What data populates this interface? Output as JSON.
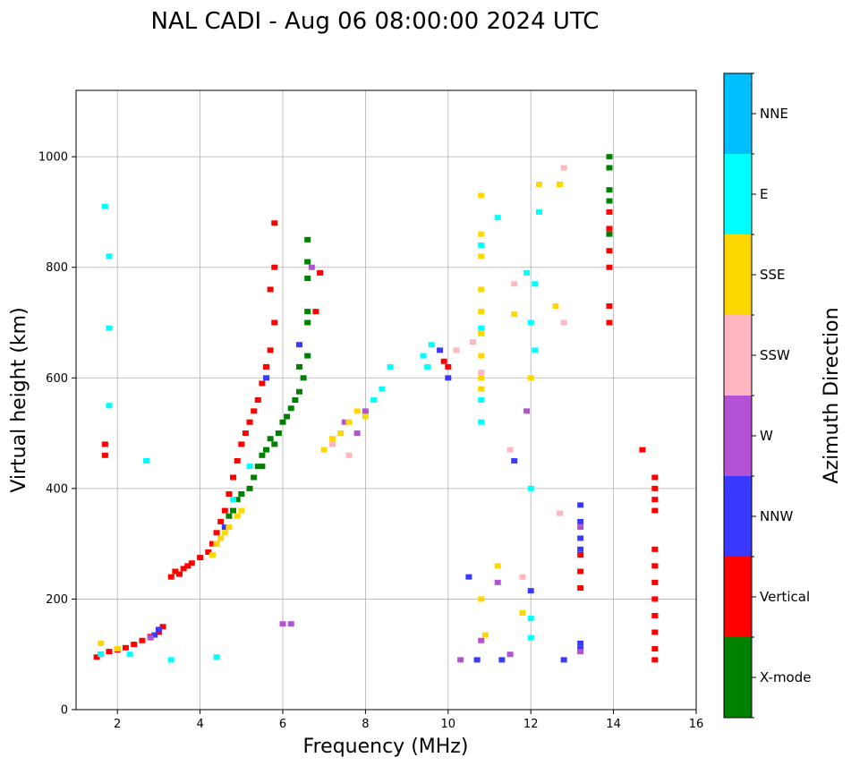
{
  "chart_data": {
    "type": "scatter",
    "title": "NAL CADI - Aug 06 08:00:00 2024 UTC",
    "xlabel": "Frequency (MHz)",
    "ylabel": "Virtual height (km)",
    "xlim": [
      1,
      16
    ],
    "ylim": [
      0,
      1120
    ],
    "xticks": [
      2,
      4,
      6,
      8,
      10,
      12,
      14,
      16
    ],
    "yticks": [
      0,
      200,
      400,
      600,
      800,
      1000
    ],
    "grid": true,
    "colorbar": {
      "label": "Azimuth Direction",
      "categories": [
        "X-mode",
        "Vertical",
        "NNW",
        "W",
        "SSW",
        "SSE",
        "E",
        "NNE"
      ],
      "colors": [
        "#008000",
        "#ff0000",
        "#3939ff",
        "#b452d6",
        "#ffb6c1",
        "#ffd700",
        "#00ffff",
        "#00bfff"
      ]
    },
    "series": [
      {
        "name": "X-mode",
        "points": [
          [
            5.3,
            420
          ],
          [
            5.4,
            440
          ],
          [
            5.5,
            460
          ],
          [
            5.6,
            470
          ],
          [
            5.8,
            480
          ],
          [
            5.9,
            500
          ],
          [
            6.0,
            520
          ],
          [
            6.1,
            530
          ],
          [
            6.2,
            545
          ],
          [
            6.3,
            560
          ],
          [
            6.4,
            575
          ],
          [
            6.5,
            600
          ],
          [
            6.6,
            640
          ],
          [
            6.6,
            700
          ],
          [
            6.6,
            720
          ],
          [
            6.6,
            780
          ],
          [
            6.6,
            810
          ],
          [
            6.6,
            850
          ],
          [
            5.5,
            440
          ],
          [
            5.2,
            400
          ],
          [
            5.0,
            390
          ],
          [
            4.9,
            380
          ],
          [
            4.8,
            360
          ],
          [
            4.7,
            350
          ],
          [
            5.7,
            490
          ],
          [
            6.4,
            620
          ],
          [
            13.9,
            1000
          ],
          [
            13.9,
            980
          ],
          [
            13.9,
            940
          ],
          [
            13.9,
            920
          ],
          [
            13.9,
            860
          ]
        ]
      },
      {
        "name": "Vertical",
        "points": [
          [
            1.5,
            95
          ],
          [
            1.6,
            100
          ],
          [
            1.8,
            105
          ],
          [
            2.0,
            108
          ],
          [
            2.2,
            112
          ],
          [
            2.4,
            118
          ],
          [
            2.6,
            125
          ],
          [
            2.8,
            132
          ],
          [
            3.0,
            140
          ],
          [
            3.1,
            150
          ],
          [
            3.3,
            240
          ],
          [
            3.4,
            250
          ],
          [
            3.5,
            245
          ],
          [
            3.6,
            255
          ],
          [
            3.7,
            260
          ],
          [
            3.8,
            265
          ],
          [
            4.0,
            275
          ],
          [
            4.2,
            285
          ],
          [
            4.3,
            300
          ],
          [
            4.4,
            320
          ],
          [
            4.5,
            340
          ],
          [
            4.6,
            360
          ],
          [
            4.7,
            390
          ],
          [
            4.8,
            420
          ],
          [
            4.9,
            450
          ],
          [
            5.0,
            480
          ],
          [
            5.1,
            500
          ],
          [
            5.2,
            520
          ],
          [
            5.3,
            540
          ],
          [
            5.4,
            560
          ],
          [
            5.5,
            590
          ],
          [
            5.6,
            620
          ],
          [
            5.7,
            650
          ],
          [
            5.8,
            700
          ],
          [
            5.7,
            760
          ],
          [
            5.8,
            800
          ],
          [
            5.8,
            880
          ],
          [
            6.8,
            720
          ],
          [
            6.9,
            790
          ],
          [
            9.9,
            630
          ],
          [
            10.0,
            620
          ],
          [
            13.9,
            900
          ],
          [
            13.9,
            870
          ],
          [
            13.9,
            830
          ],
          [
            13.9,
            800
          ],
          [
            13.9,
            730
          ],
          [
            13.9,
            700
          ],
          [
            14.7,
            470
          ],
          [
            15.0,
            420
          ],
          [
            15.0,
            400
          ],
          [
            15.0,
            380
          ],
          [
            15.0,
            360
          ],
          [
            15.0,
            290
          ],
          [
            15.0,
            260
          ],
          [
            15.0,
            230
          ],
          [
            15.0,
            200
          ],
          [
            15.0,
            170
          ],
          [
            15.0,
            140
          ],
          [
            15.0,
            110
          ],
          [
            15.0,
            90
          ],
          [
            13.2,
            280
          ],
          [
            13.2,
            250
          ],
          [
            13.2,
            220
          ],
          [
            1.7,
            480
          ],
          [
            1.7,
            460
          ]
        ]
      },
      {
        "name": "NNW",
        "points": [
          [
            2.9,
            135
          ],
          [
            3.0,
            145
          ],
          [
            4.4,
            300
          ],
          [
            4.6,
            330
          ],
          [
            5.6,
            600
          ],
          [
            6.4,
            660
          ],
          [
            9.8,
            650
          ],
          [
            10.0,
            600
          ],
          [
            10.5,
            240
          ],
          [
            10.7,
            90
          ],
          [
            11.3,
            90
          ],
          [
            11.6,
            450
          ],
          [
            12.0,
            215
          ],
          [
            12.8,
            90
          ],
          [
            13.2,
            370
          ],
          [
            13.2,
            340
          ],
          [
            13.2,
            310
          ],
          [
            13.2,
            290
          ],
          [
            13.2,
            120
          ],
          [
            13.2,
            110
          ]
        ]
      },
      {
        "name": "W",
        "points": [
          [
            2.8,
            130
          ],
          [
            6.0,
            155
          ],
          [
            6.2,
            155
          ],
          [
            6.7,
            800
          ],
          [
            7.5,
            520
          ],
          [
            7.8,
            500
          ],
          [
            8.0,
            540
          ],
          [
            10.3,
            90
          ],
          [
            10.8,
            125
          ],
          [
            11.2,
            230
          ],
          [
            11.5,
            100
          ],
          [
            11.9,
            540
          ],
          [
            13.2,
            330
          ],
          [
            13.2,
            105
          ]
        ]
      },
      {
        "name": "SSW",
        "points": [
          [
            7.2,
            480
          ],
          [
            7.6,
            460
          ],
          [
            10.2,
            650
          ],
          [
            11.5,
            470
          ],
          [
            12.7,
            355
          ],
          [
            12.8,
            700
          ],
          [
            12.8,
            980
          ],
          [
            11.8,
            240
          ],
          [
            11.6,
            770
          ],
          [
            10.8,
            610
          ],
          [
            10.6,
            665
          ]
        ]
      },
      {
        "name": "SSE",
        "points": [
          [
            1.6,
            120
          ],
          [
            2.0,
            110
          ],
          [
            4.3,
            280
          ],
          [
            4.4,
            300
          ],
          [
            4.5,
            310
          ],
          [
            4.6,
            320
          ],
          [
            4.7,
            330
          ],
          [
            4.9,
            350
          ],
          [
            5.0,
            360
          ],
          [
            7.0,
            470
          ],
          [
            7.2,
            490
          ],
          [
            7.4,
            500
          ],
          [
            7.6,
            520
          ],
          [
            7.8,
            540
          ],
          [
            8.0,
            530
          ],
          [
            10.8,
            930
          ],
          [
            10.8,
            860
          ],
          [
            10.8,
            820
          ],
          [
            10.8,
            760
          ],
          [
            10.8,
            720
          ],
          [
            10.8,
            680
          ],
          [
            10.8,
            640
          ],
          [
            10.8,
            600
          ],
          [
            10.8,
            580
          ],
          [
            11.2,
            260
          ],
          [
            11.8,
            175
          ],
          [
            12.0,
            600
          ],
          [
            12.2,
            950
          ],
          [
            12.6,
            730
          ],
          [
            12.7,
            950
          ],
          [
            11.6,
            715
          ],
          [
            10.9,
            135
          ],
          [
            10.8,
            200
          ]
        ]
      },
      {
        "name": "E",
        "points": [
          [
            1.6,
            100
          ],
          [
            1.7,
            910
          ],
          [
            1.8,
            820
          ],
          [
            1.8,
            690
          ],
          [
            1.8,
            550
          ],
          [
            2.3,
            100
          ],
          [
            2.7,
            450
          ],
          [
            3.3,
            90
          ],
          [
            4.4,
            95
          ],
          [
            4.8,
            380
          ],
          [
            5.2,
            440
          ],
          [
            8.2,
            560
          ],
          [
            8.4,
            580
          ],
          [
            8.6,
            620
          ],
          [
            9.4,
            640
          ],
          [
            9.5,
            620
          ],
          [
            9.6,
            660
          ],
          [
            10.8,
            520
          ],
          [
            10.8,
            560
          ],
          [
            10.8,
            690
          ],
          [
            10.8,
            840
          ],
          [
            11.2,
            890
          ],
          [
            12.0,
            700
          ],
          [
            12.0,
            400
          ],
          [
            12.0,
            165
          ],
          [
            12.0,
            130
          ],
          [
            12.1,
            650
          ],
          [
            12.1,
            770
          ],
          [
            12.2,
            900
          ],
          [
            11.9,
            790
          ]
        ]
      },
      {
        "name": "NNE",
        "points": []
      }
    ]
  }
}
